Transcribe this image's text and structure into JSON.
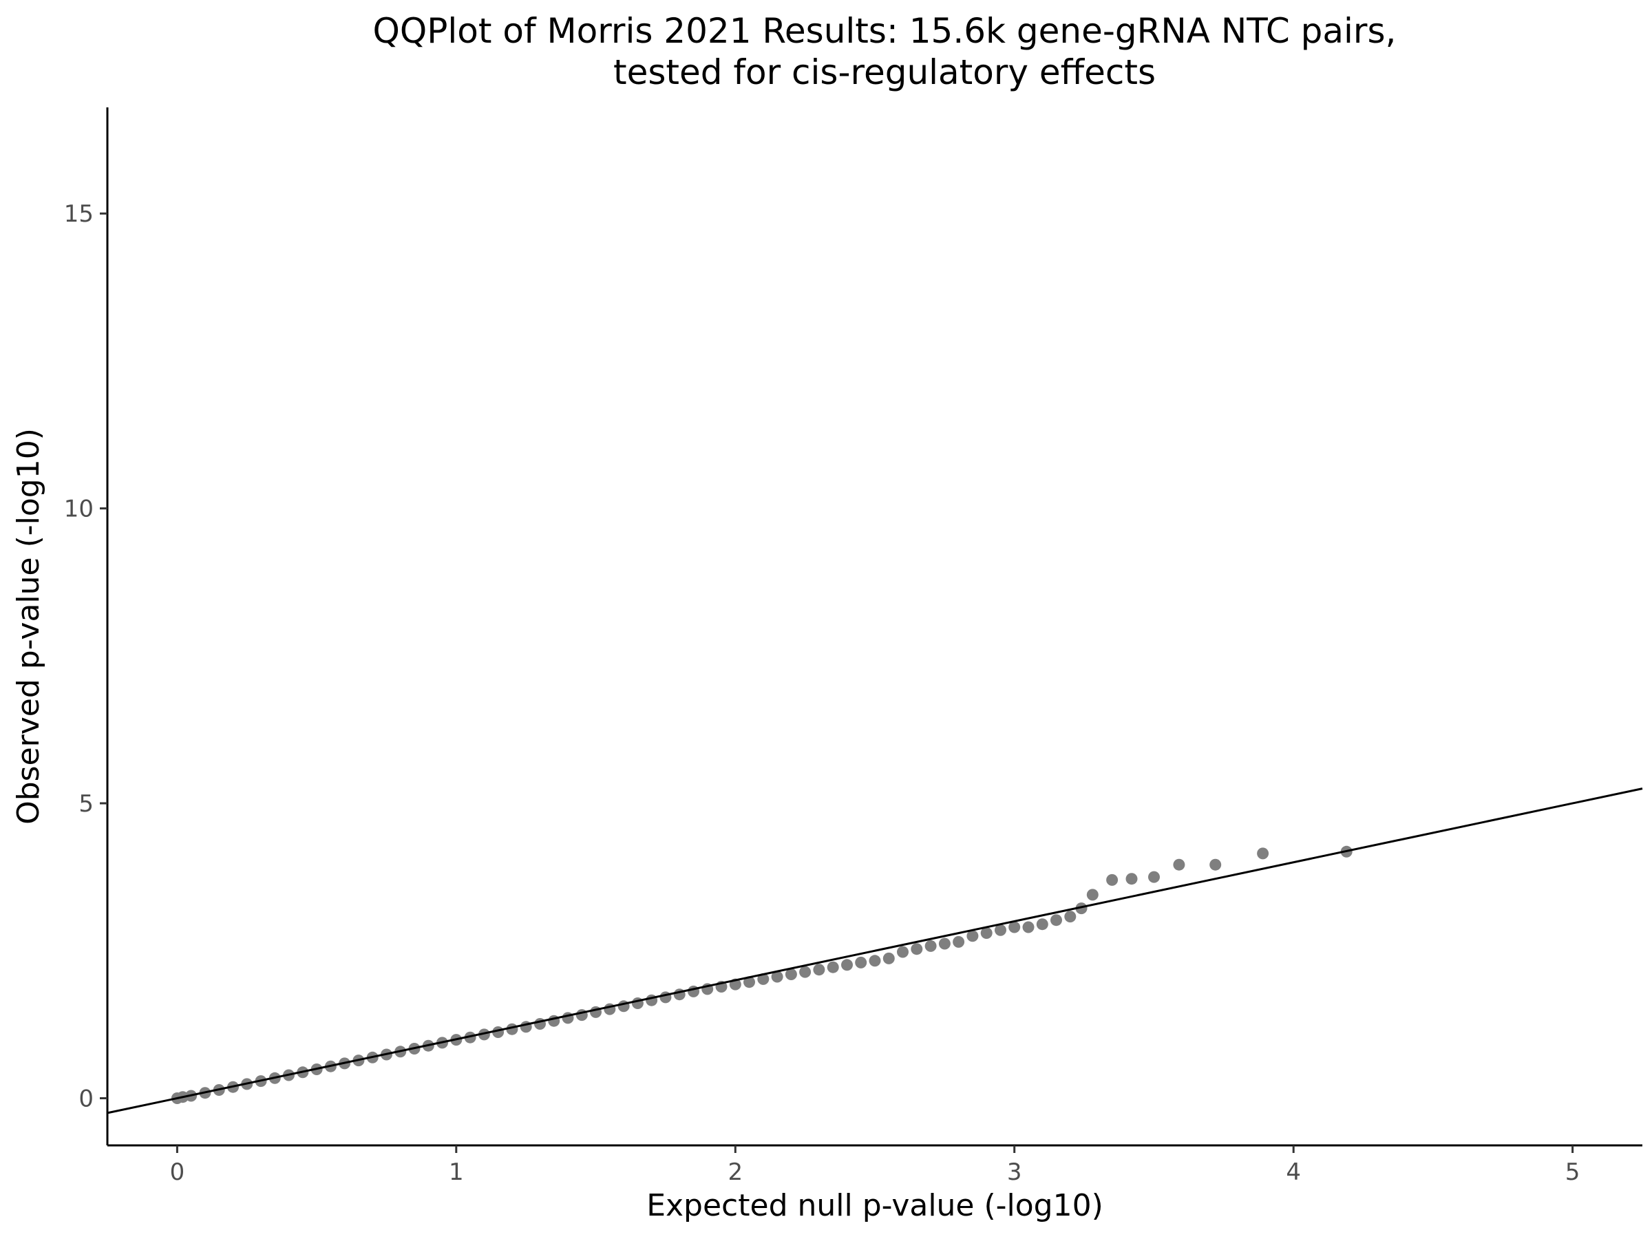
{
  "chart_data": {
    "type": "scatter",
    "title_line1": "QQPlot of Morris 2021 Results: 15.6k gene-gRNA NTC pairs,",
    "title_line2": "tested for cis-regulatory effects",
    "xlabel": "Expected null p-value (-log10)",
    "ylabel": "Observed p-value (-log10)",
    "xlim": [
      -0.25,
      5.25
    ],
    "ylim": [
      -0.8,
      16.8
    ],
    "x_ticks": [
      0,
      1,
      2,
      3,
      4,
      5
    ],
    "x_tick_labels": [
      "0",
      "1",
      "2",
      "3",
      "4",
      "5"
    ],
    "y_ticks": [
      0,
      5,
      10,
      15
    ],
    "y_tick_labels": [
      "0",
      "5",
      "10",
      "15"
    ],
    "grid": false,
    "legend": "none",
    "reference_line": {
      "slope": 1,
      "intercept": 0,
      "color": "#000000"
    },
    "point_color": "#7f7f7f",
    "series": [
      {
        "x": [
          0.0,
          0.02,
          0.05,
          0.1,
          0.15,
          0.2,
          0.25,
          0.3,
          0.35,
          0.4,
          0.45,
          0.5,
          0.55,
          0.6,
          0.65,
          0.7,
          0.75,
          0.8,
          0.85,
          0.9,
          0.95,
          1.0,
          1.05,
          1.1,
          1.15,
          1.2,
          1.25,
          1.3,
          1.35,
          1.4,
          1.45,
          1.5,
          1.55,
          1.6,
          1.65,
          1.7,
          1.75,
          1.8,
          1.85,
          1.9,
          1.95,
          2.0,
          2.05,
          2.1,
          2.15,
          2.2,
          2.25,
          2.3,
          2.35,
          2.4,
          2.45,
          2.5,
          2.55,
          2.6,
          2.65,
          2.7,
          2.75,
          2.8,
          2.85,
          2.9,
          2.95,
          3.0,
          3.05,
          3.1,
          3.15,
          3.2,
          3.24,
          3.28,
          3.35,
          3.42,
          3.5,
          3.59,
          3.72,
          3.89,
          4.19
        ],
        "y": [
          0.0,
          0.02,
          0.04,
          0.09,
          0.14,
          0.19,
          0.24,
          0.29,
          0.34,
          0.39,
          0.44,
          0.49,
          0.54,
          0.59,
          0.64,
          0.69,
          0.74,
          0.79,
          0.84,
          0.89,
          0.94,
          0.99,
          1.03,
          1.08,
          1.12,
          1.17,
          1.21,
          1.26,
          1.31,
          1.36,
          1.41,
          1.46,
          1.51,
          1.56,
          1.61,
          1.66,
          1.71,
          1.76,
          1.81,
          1.85,
          1.89,
          1.93,
          1.97,
          2.02,
          2.06,
          2.1,
          2.14,
          2.18,
          2.22,
          2.26,
          2.3,
          2.33,
          2.37,
          2.48,
          2.53,
          2.58,
          2.62,
          2.65,
          2.75,
          2.8,
          2.85,
          2.9,
          2.9,
          2.95,
          3.02,
          3.08,
          3.22,
          3.45,
          3.7,
          3.72,
          3.75,
          3.96,
          3.96,
          4.15,
          4.18
        ]
      }
    ]
  }
}
